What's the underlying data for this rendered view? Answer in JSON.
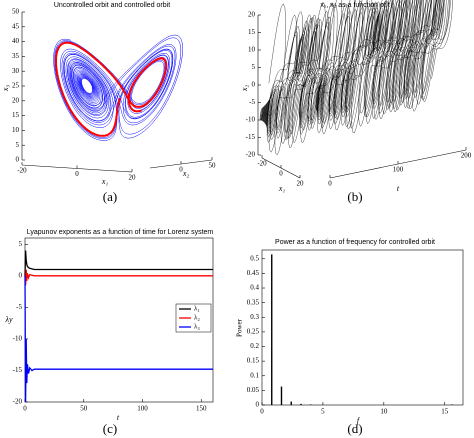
{
  "chart_data": [
    {
      "type": "line3d",
      "title": "Uncontrolled orbit and controlled orbit",
      "caption": "(a)",
      "xlabel": "x₁",
      "ylabel": "x₂",
      "zlabel": "x₃",
      "xlim": [
        -20,
        20
      ],
      "xticks": [
        -20,
        0,
        20
      ],
      "ylim": [
        -50,
        50
      ],
      "yticks": [
        0,
        50
      ],
      "zlim": [
        0,
        50
      ],
      "zticks": [
        0,
        5,
        10,
        15,
        20,
        25,
        30,
        35,
        40,
        45,
        50
      ],
      "colors": [
        "#0000ff",
        "#ff0000"
      ]
    },
    {
      "type": "line3d",
      "title": "x₁, x₂ as a function of t",
      "caption": "(b)",
      "xlabel": "x₁",
      "ylabel": "t",
      "zlabel": "x₂",
      "xlim": [
        -20,
        20
      ],
      "xticks": [
        -20,
        0,
        20
      ],
      "ylim": [
        0,
        200
      ],
      "yticks": [
        0,
        100,
        200
      ],
      "zlim": [
        -20,
        20
      ],
      "zticks": [
        -20,
        -15,
        -10,
        -5,
        0,
        5,
        10,
        15,
        20
      ],
      "colors": [
        "#000000"
      ]
    },
    {
      "type": "line",
      "title": "Lyapunov exponents as a function of time for Lorenz system",
      "caption": "(c)",
      "xlabel": "t",
      "ylabel": "λy",
      "xlim": [
        0,
        160
      ],
      "xticks": [
        0,
        50,
        100,
        150
      ],
      "ylim": [
        -20,
        6
      ],
      "yticks": [
        5,
        0,
        -5,
        -10,
        -15,
        -20
      ],
      "legend": "right",
      "x": [
        0,
        0.5,
        1,
        1.5,
        2,
        3,
        4,
        6,
        8,
        10,
        15,
        20,
        40,
        60,
        80,
        100,
        120,
        140,
        160
      ],
      "series": [
        {
          "name": "λ₁",
          "color": "#000000",
          "values": [
            0,
            4,
            2.5,
            1.8,
            1.5,
            1.3,
            1.2,
            1.1,
            1,
            1,
            1,
            1,
            1,
            1,
            1,
            1,
            1,
            1,
            1
          ]
        },
        {
          "name": "λ₂",
          "color": "#ff0000",
          "values": [
            0,
            -1.5,
            1,
            -0.8,
            0.4,
            -0.3,
            0.2,
            0.1,
            0,
            0,
            0,
            0,
            0,
            0,
            0,
            0,
            0,
            0,
            0
          ]
        },
        {
          "name": "λ₃",
          "color": "#0000ff",
          "values": [
            0,
            -20,
            -10,
            -17,
            -14,
            -15.5,
            -14.6,
            -15,
            -14.8,
            -14.8,
            -14.8,
            -14.8,
            -14.8,
            -14.8,
            -14.8,
            -14.8,
            -14.8,
            -14.8,
            -14.8
          ]
        }
      ]
    },
    {
      "type": "stem",
      "title": "Power as a function of frequency for controlled orbit",
      "caption": "(d)",
      "xlabel": "f",
      "ylabel": "Power",
      "xlim": [
        0,
        16.5
      ],
      "xticks": [
        0,
        5,
        10,
        15
      ],
      "ylim": [
        0,
        0.53
      ],
      "yticks": [
        0,
        0.05,
        0.1,
        0.15,
        0.2,
        0.25,
        0.3,
        0.35,
        0.4,
        0.45,
        0.5
      ],
      "color": "#000000",
      "x": [
        0.8,
        1.6,
        2.4,
        3.2,
        4.0,
        15.6
      ],
      "values": [
        0.515,
        0.063,
        0.012,
        0.004,
        0.002,
        0.002
      ]
    }
  ]
}
